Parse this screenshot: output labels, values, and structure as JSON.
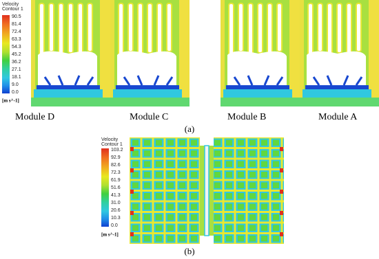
{
  "panel_a": {
    "legend": {
      "title": "Velocity",
      "subtitle": "Contour 1",
      "labels": [
        "90.5",
        "81.4",
        "72.4",
        "63.3",
        "54.3",
        "45.2",
        "36.2",
        "27.1",
        "18.1",
        "9.0",
        "0.0"
      ],
      "unit": "[m s^-1]"
    },
    "modules": [
      "Module D",
      "Module C",
      "Module B",
      "Module A"
    ],
    "caption": "(a)"
  },
  "panel_b": {
    "legend": {
      "title": "Velocity",
      "subtitle": "Contour 1",
      "labels": [
        "103.2",
        "92.9",
        "82.6",
        "72.3",
        "61.9",
        "51.6",
        "41.3",
        "31.0",
        "20.6",
        "10.3",
        "0.0"
      ],
      "unit": "[m s^-1]"
    },
    "caption": "(b)"
  }
}
